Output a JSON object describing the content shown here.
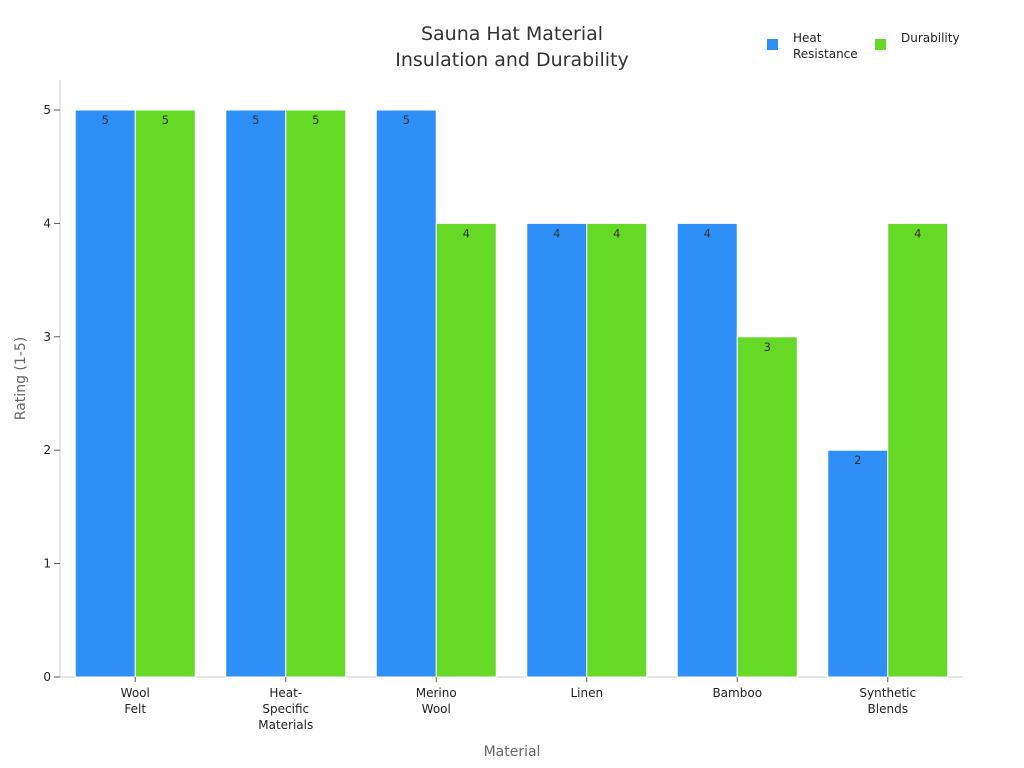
{
  "chart_data": {
    "type": "bar",
    "title": [
      "Sauna Hat Material",
      "Insulation and Durability"
    ],
    "xlabel": "Material",
    "ylabel": "Rating (1-5)",
    "ylim": [
      0,
      5
    ],
    "yticks": [
      "0",
      "1",
      "2",
      "3",
      "4",
      "5"
    ],
    "categories": [
      [
        "Wool",
        "Felt"
      ],
      [
        "Heat-",
        "Specific",
        "Materials"
      ],
      [
        "Merino",
        "Wool"
      ],
      [
        "Linen"
      ],
      [
        "Bamboo"
      ],
      [
        "Synthetic",
        "Blends"
      ]
    ],
    "series": [
      {
        "name": [
          "Heat",
          "Resistance"
        ],
        "color": "#2e90f7",
        "values": [
          5,
          5,
          5,
          4,
          4,
          2
        ]
      },
      {
        "name": [
          "Durability"
        ],
        "color": "#66d926",
        "values": [
          5,
          5,
          4,
          4,
          3,
          4
        ]
      }
    ],
    "legend_position": "top-right",
    "grid": false
  }
}
